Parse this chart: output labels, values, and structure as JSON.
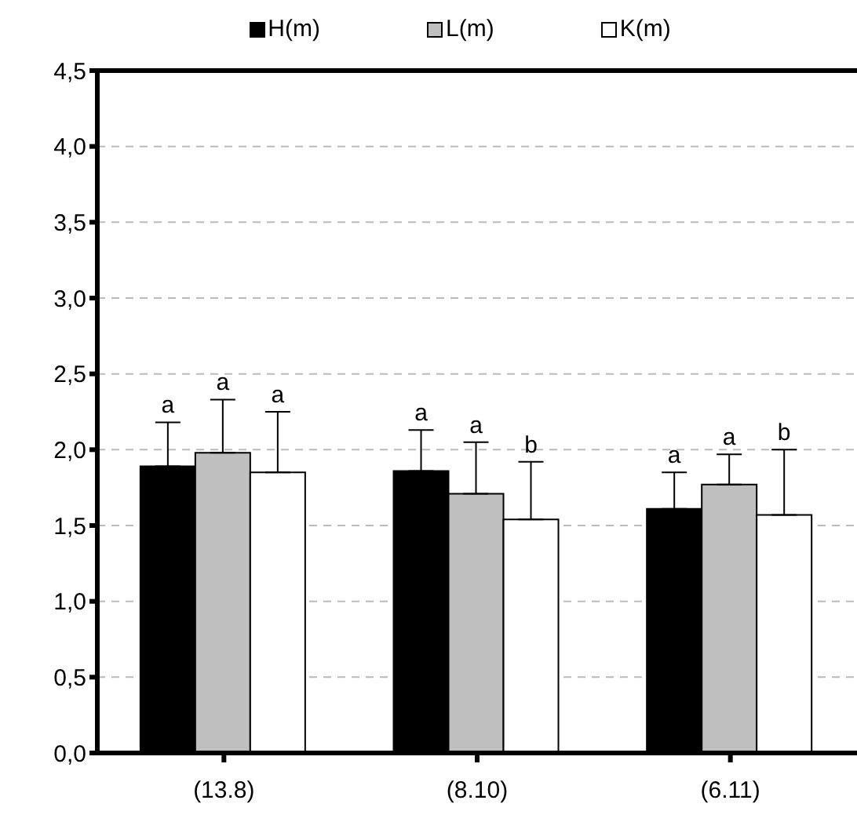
{
  "chart_data": {
    "type": "bar",
    "categories": [
      "(13.8)",
      "(8.10)",
      "(6.11)"
    ],
    "series": [
      {
        "name": "H(m)",
        "color": "#000000",
        "values": [
          1.89,
          1.86,
          1.61
        ],
        "errors": [
          0.29,
          0.27,
          0.24
        ],
        "value_labels": [
          "a",
          "a",
          "a"
        ]
      },
      {
        "name": "L(m)",
        "color": "#bfbfbf",
        "values": [
          1.98,
          1.71,
          1.77
        ],
        "errors": [
          0.35,
          0.34,
          0.2
        ],
        "value_labels": [
          "a",
          "a",
          "a"
        ]
      },
      {
        "name": "K(m)",
        "color": "#ffffff",
        "values": [
          1.85,
          1.54,
          1.57
        ],
        "errors": [
          0.4,
          0.38,
          0.43
        ],
        "value_labels": [
          "a",
          "b",
          "b"
        ]
      }
    ],
    "ylim": [
      0,
      4.5
    ],
    "yticks": [
      {
        "value": 0,
        "label": "0,0"
      },
      {
        "value": 0.5,
        "label": "0,5"
      },
      {
        "value": 1,
        "label": "1,0"
      },
      {
        "value": 1.5,
        "label": "1,5"
      },
      {
        "value": 2,
        "label": "2,0"
      },
      {
        "value": 2.5,
        "label": "2,5"
      },
      {
        "value": 3,
        "label": "3,0"
      },
      {
        "value": 3.5,
        "label": "3,5"
      },
      {
        "value": 4,
        "label": "4,0"
      },
      {
        "value": 4.5,
        "label": "4,5"
      }
    ],
    "grid": "y",
    "legend": "top"
  }
}
